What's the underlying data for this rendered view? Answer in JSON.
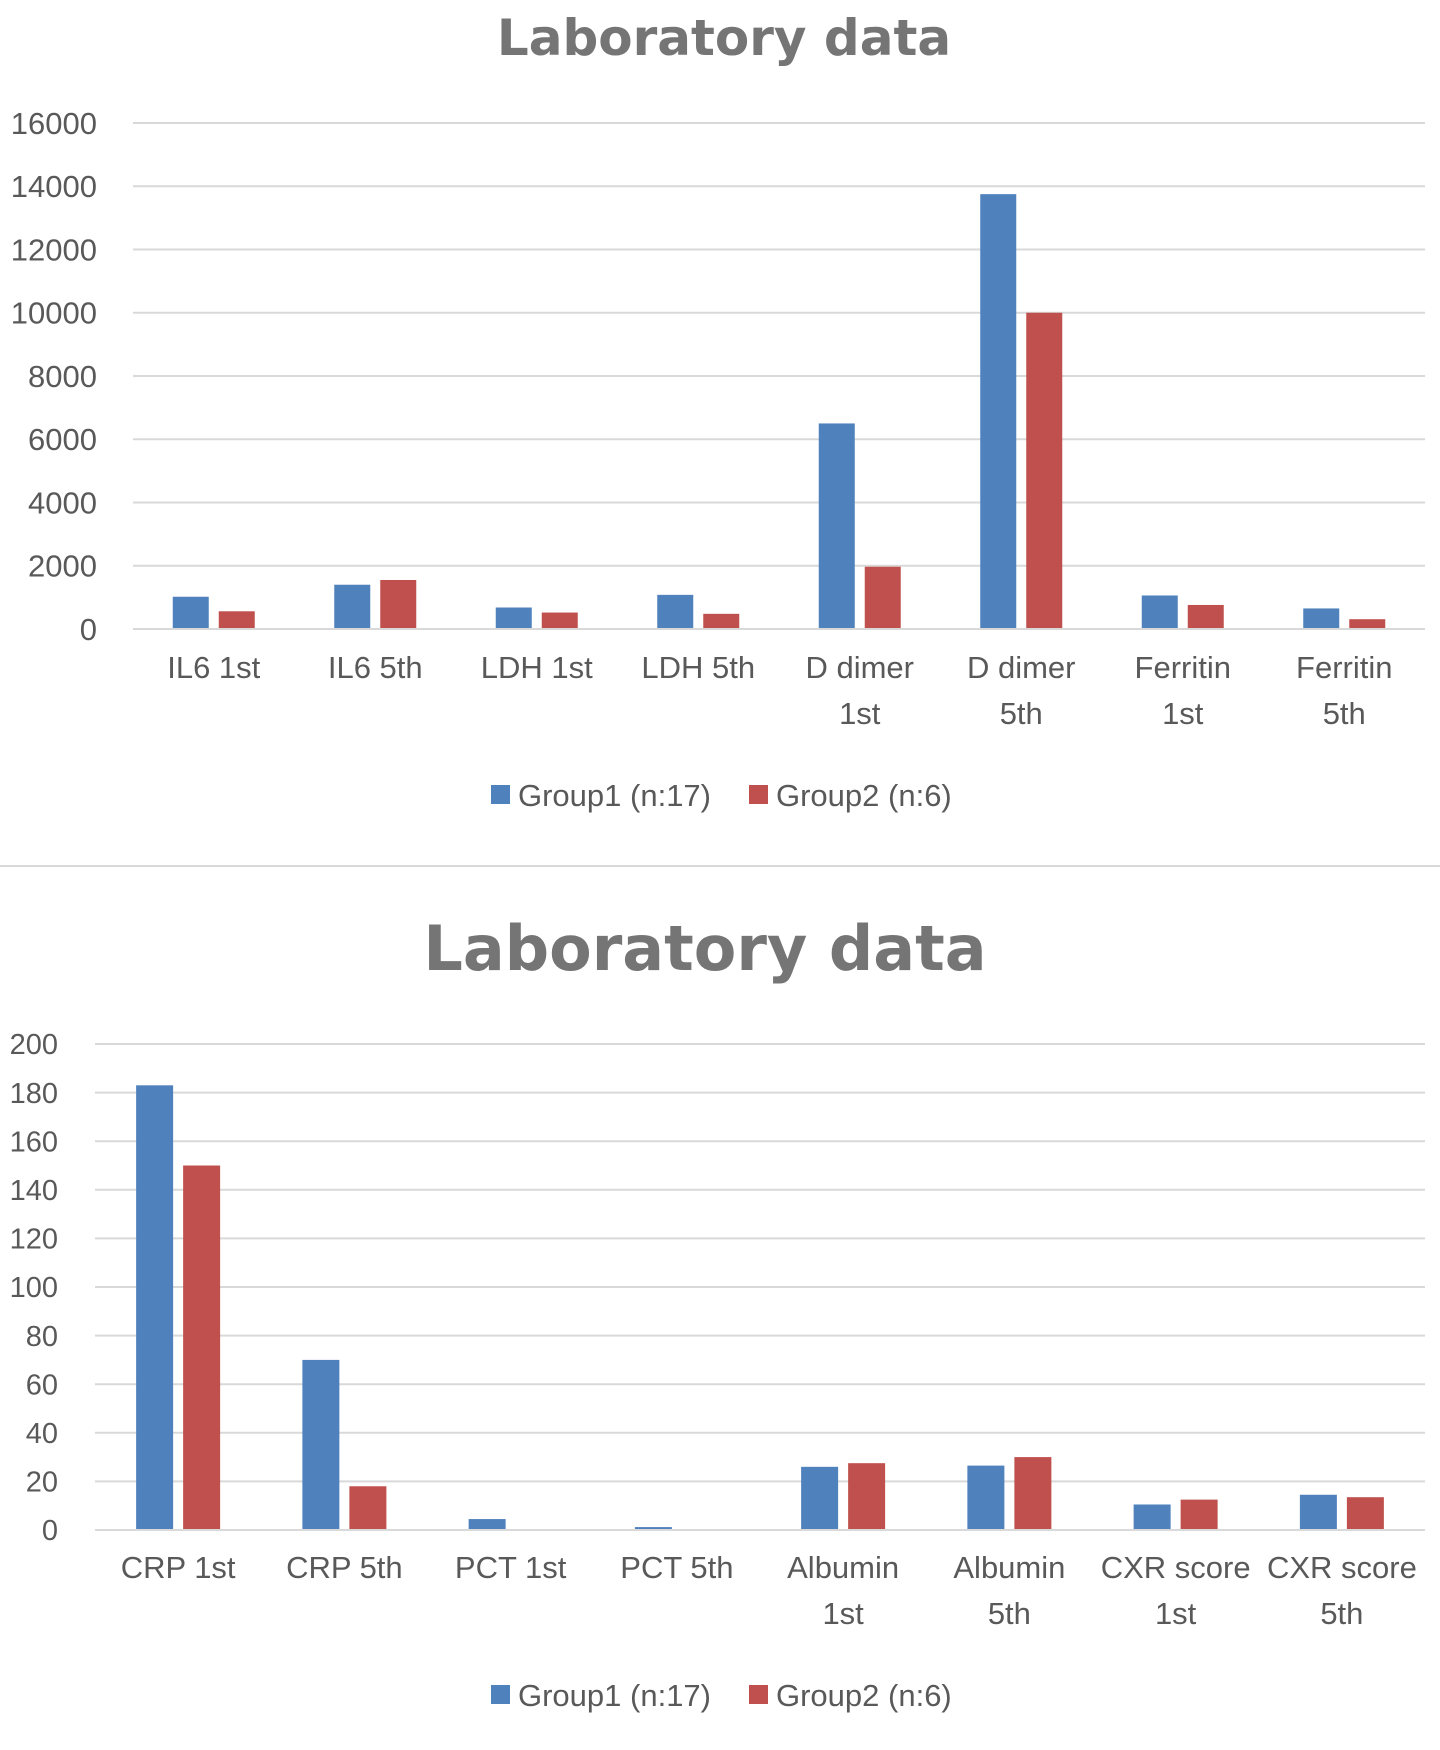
{
  "colors": {
    "group1": "#4f81bd",
    "group2": "#c0504d",
    "grid": "#d9d9d9",
    "text": "#595959",
    "title": "#757575"
  },
  "chart_data": [
    {
      "type": "bar",
      "title": "Laboratory data",
      "categories": [
        [
          "IL6 1st"
        ],
        [
          "IL6 5th"
        ],
        [
          "LDH 1st"
        ],
        [
          "LDH 5th"
        ],
        [
          "D dimer",
          "1st"
        ],
        [
          "D dimer",
          "5th"
        ],
        [
          "Ferritin",
          "1st"
        ],
        [
          "Ferritin",
          "5th"
        ]
      ],
      "series": [
        {
          "name": "Group1 (n:17)",
          "values": [
            1020,
            1400,
            680,
            1080,
            6500,
            13750,
            1060,
            650
          ]
        },
        {
          "name": "Group2 (n:6)",
          "values": [
            560,
            1550,
            520,
            480,
            1970,
            10000,
            760,
            310
          ]
        }
      ],
      "ylim": [
        0,
        16000
      ],
      "yticks": [
        0,
        2000,
        4000,
        6000,
        8000,
        10000,
        12000,
        14000,
        16000
      ],
      "grid": true,
      "legend": "bottom",
      "xlabel": "",
      "ylabel": ""
    },
    {
      "type": "bar",
      "title": "Laboratory data",
      "categories": [
        [
          "CRP 1st"
        ],
        [
          "CRP 5th"
        ],
        [
          "PCT 1st"
        ],
        [
          "PCT 5th"
        ],
        [
          "Albumin",
          "1st"
        ],
        [
          "Albumin",
          "5th"
        ],
        [
          "CXR score",
          "1st"
        ],
        [
          "CXR score",
          "5th"
        ]
      ],
      "series": [
        {
          "name": "Group1 (n:17)",
          "values": [
            183,
            70,
            4.5,
            1.2,
            26,
            26.5,
            10.5,
            14.5
          ]
        },
        {
          "name": "Group2 (n:6)",
          "values": [
            150,
            18,
            0,
            0,
            27.5,
            30,
            12.5,
            13.5
          ]
        }
      ],
      "ylim": [
        0,
        200
      ],
      "yticks": [
        0,
        20,
        40,
        60,
        80,
        100,
        120,
        140,
        160,
        180,
        200
      ],
      "grid": true,
      "legend": "bottom",
      "xlabel": "",
      "ylabel": ""
    }
  ]
}
